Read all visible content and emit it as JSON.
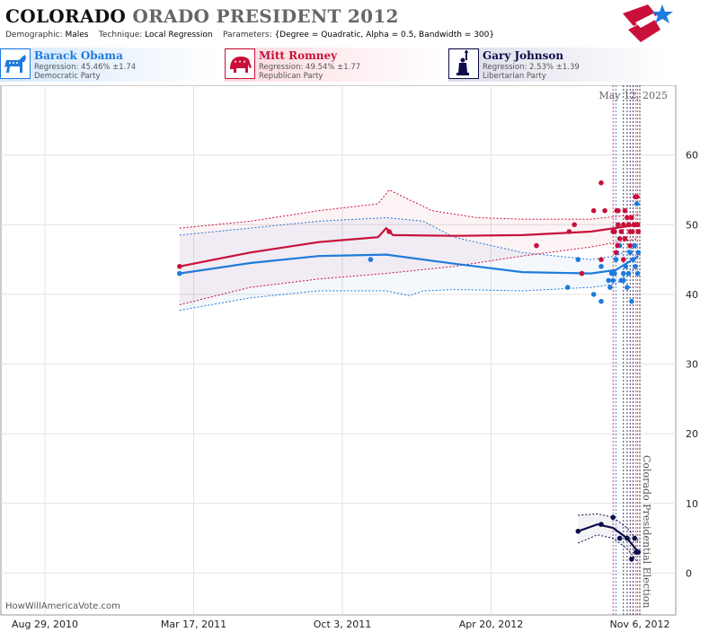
{
  "header": {
    "title_part1": "COLORADO",
    "title_part2": "ORADO PRESIDENT 2012",
    "demographic_label": "Demographic:",
    "demographic_value": "Males",
    "technique_label": "Technique:",
    "technique_value": "Local Regression",
    "parameters_label": "Parameters:",
    "parameters_value": "{Degree = Quadratic, Alpha = 0.5, Bandwidth = 300}"
  },
  "candidates": [
    {
      "name": "Barack Obama",
      "regression": "Regression: 45.46% ±1.74",
      "party": "Democratic Party",
      "color": "#1f7bdc",
      "icon": "donkey-icon"
    },
    {
      "name": "Mitt Romney",
      "regression": "Regression: 49.54% ±1.77",
      "party": "Republican Party",
      "color": "#c8103a",
      "icon": "elephant-icon"
    },
    {
      "name": "Gary Johnson",
      "regression": "Regression: 2.53% ±1.39",
      "party": "Libertarian Party",
      "color": "#0e0c4a",
      "icon": "statue-of-liberty-icon"
    }
  ],
  "chart_data": {
    "type": "scatter",
    "x_tick_labels": [
      "Aug 29, 2010",
      "Mar 17, 2011",
      "Oct 3, 2011",
      "Apr 20, 2012",
      "Nov 6, 2012"
    ],
    "y_ticks": [
      0,
      10,
      20,
      30,
      40,
      50,
      60
    ],
    "ylim": [
      -6,
      70
    ],
    "date_annotation": "May 12, 2025",
    "event_label": "Colorado Presidential Election",
    "watermark": "HowWillAmericaVote.com",
    "grid": true,
    "series": [
      {
        "name": "Barack Obama",
        "color": "#1f7bdc",
        "points": [
          [
            "Feb 26, 2011",
            43
          ],
          [
            "Nov 10, 2011",
            45
          ],
          [
            "Aug 1, 2012",
            41
          ],
          [
            "Aug 15, 2012",
            45
          ],
          [
            "Sep 5, 2012",
            40
          ],
          [
            "Sep 15, 2012",
            44
          ],
          [
            "Sep 15, 2012",
            39
          ],
          [
            "Sep 25, 2012",
            42
          ],
          [
            "Sep 27, 2012",
            41
          ],
          [
            "Sep 29, 2012",
            43
          ],
          [
            "Oct 1, 2012",
            42
          ],
          [
            "Oct 3, 2012",
            43
          ],
          [
            "Oct 5, 2012",
            45
          ],
          [
            "Oct 6, 2012",
            46
          ],
          [
            "Oct 10, 2012",
            47
          ],
          [
            "Oct 12, 2012",
            42
          ],
          [
            "Oct 15, 2012",
            43
          ],
          [
            "Oct 15, 2012",
            42
          ],
          [
            "Oct 18, 2012",
            44
          ],
          [
            "Oct 20, 2012",
            41
          ],
          [
            "Oct 22, 2012",
            43
          ],
          [
            "Oct 24, 2012",
            46
          ],
          [
            "Oct 26, 2012",
            39
          ],
          [
            "Oct 28, 2012",
            45
          ],
          [
            "Oct 30, 2012",
            47
          ],
          [
            "Oct 31, 2012",
            44
          ],
          [
            "Nov 2, 2012",
            53
          ],
          [
            "Nov 3, 2012",
            43
          ],
          [
            "Nov 4, 2012",
            46
          ]
        ],
        "trend": [
          [
            "Feb 26, 2011",
            43
          ],
          [
            "Jun 1, 2011",
            44.5
          ],
          [
            "Sep 1, 2011",
            45.5
          ],
          [
            "Dec 1, 2011",
            45.7
          ],
          [
            "Mar 1, 2012",
            44.4
          ],
          [
            "Jun 1, 2012",
            43.2
          ],
          [
            "Sep 1, 2012",
            43
          ],
          [
            "Oct 5, 2012",
            43.5
          ],
          [
            "Nov 4, 2012",
            45.5
          ]
        ],
        "upper": [
          [
            "Feb 26, 2011",
            48.5
          ],
          [
            "Jun 1, 2011",
            49.5
          ],
          [
            "Sep 1, 2011",
            50.5
          ],
          [
            "Dec 1, 2011",
            51
          ],
          [
            "Jan 20, 2012",
            50.5
          ],
          [
            "Mar 1, 2012",
            48.2
          ],
          [
            "Jun 1, 2012",
            46
          ],
          [
            "Sep 1, 2012",
            45
          ],
          [
            "Oct 5, 2012",
            45.5
          ],
          [
            "Nov 4, 2012",
            47
          ]
        ],
        "lower": [
          [
            "Feb 26, 2011",
            37.7
          ],
          [
            "Jun 1, 2011",
            39.5
          ],
          [
            "Sep 1, 2011",
            40.5
          ],
          [
            "Dec 1, 2011",
            40.5
          ],
          [
            "Jan 1, 2012",
            39.8
          ],
          [
            "Jan 20, 2012",
            40.5
          ],
          [
            "Mar 1, 2012",
            40.7
          ],
          [
            "Jun 1, 2012",
            40.5
          ],
          [
            "Sep 1, 2012",
            41
          ],
          [
            "Oct 5, 2012",
            41.5
          ],
          [
            "Nov 4, 2012",
            44
          ]
        ]
      },
      {
        "name": "Mitt Romney",
        "color": "#c8103a",
        "points": [
          [
            "Feb 26, 2011",
            44
          ],
          [
            "Dec 5, 2011",
            49
          ],
          [
            "Jun 20, 2012",
            47
          ],
          [
            "Aug 3, 2012",
            49
          ],
          [
            "Aug 10, 2012",
            50
          ],
          [
            "Aug 20, 2012",
            43
          ],
          [
            "Sep 5, 2012",
            52
          ],
          [
            "Sep 15, 2012",
            56
          ],
          [
            "Sep 15, 2012",
            45
          ],
          [
            "Sep 20, 2012",
            52
          ],
          [
            "Oct 1, 2012",
            49
          ],
          [
            "Oct 3, 2012",
            49
          ],
          [
            "Oct 5, 2012",
            46
          ],
          [
            "Oct 6, 2012",
            52
          ],
          [
            "Oct 7, 2012",
            47
          ],
          [
            "Oct 8, 2012",
            52
          ],
          [
            "Oct 8, 2012",
            50
          ],
          [
            "Oct 10, 2012",
            48
          ],
          [
            "Oct 12, 2012",
            49
          ],
          [
            "Oct 15, 2012",
            45
          ],
          [
            "Oct 15, 2012",
            50
          ],
          [
            "Oct 17, 2012",
            52
          ],
          [
            "Oct 17, 2012",
            48
          ],
          [
            "Oct 20, 2012",
            51
          ],
          [
            "Oct 22, 2012",
            50
          ],
          [
            "Oct 24, 2012",
            49
          ],
          [
            "Oct 24, 2012",
            47
          ],
          [
            "Oct 26, 2012",
            51
          ],
          [
            "Oct 27, 2012",
            49
          ],
          [
            "Oct 29, 2012",
            50
          ],
          [
            "Oct 30, 2012",
            50
          ],
          [
            "Oct 31, 2012",
            54
          ],
          [
            "Nov 2, 2012",
            54
          ],
          [
            "Nov 3, 2012",
            50
          ],
          [
            "Nov 4, 2012",
            49
          ]
        ],
        "trend": [
          [
            "Feb 26, 2011",
            44
          ],
          [
            "Jun 1, 2011",
            46
          ],
          [
            "Sep 1, 2011",
            47.5
          ],
          [
            "Nov 20, 2011",
            48.2
          ],
          [
            "Dec 1, 2011",
            49.5
          ],
          [
            "Dec 10, 2011",
            48.5
          ],
          [
            "Mar 1, 2012",
            48.4
          ],
          [
            "Jun 1, 2012",
            48.5
          ],
          [
            "Sep 1, 2012",
            49
          ],
          [
            "Nov 4, 2012",
            50
          ]
        ],
        "upper": [
          [
            "Feb 26, 2011",
            49.5
          ],
          [
            "Jun 1, 2011",
            50.5
          ],
          [
            "Sep 1, 2011",
            52
          ],
          [
            "Nov 20, 2011",
            53
          ],
          [
            "Dec 5, 2011",
            55
          ],
          [
            "Dec 20, 2011",
            54.2
          ],
          [
            "Feb 1, 2012",
            52
          ],
          [
            "Apr 1, 2012",
            51
          ],
          [
            "Jun 1, 2012",
            50.8
          ],
          [
            "Sep 1, 2012",
            50.8
          ],
          [
            "Nov 4, 2012",
            51.5
          ]
        ],
        "lower": [
          [
            "Feb 26, 2011",
            38.5
          ],
          [
            "Jun 1, 2011",
            41
          ],
          [
            "Sep 1, 2011",
            42.2
          ],
          [
            "Dec 1, 2011",
            43
          ],
          [
            "Mar 1, 2012",
            44
          ],
          [
            "Jun 1, 2012",
            45.5
          ],
          [
            "Sep 1, 2012",
            46.8
          ],
          [
            "Nov 4, 2012",
            48
          ]
        ]
      },
      {
        "name": "Gary Johnson",
        "color": "#0e0c4a",
        "points": [
          [
            "Aug 15, 2012",
            6
          ],
          [
            "Sep 15, 2012",
            7
          ],
          [
            "Oct 1, 2012",
            8
          ],
          [
            "Oct 10, 2012",
            5
          ],
          [
            "Oct 20, 2012",
            5
          ],
          [
            "Oct 26, 2012",
            2
          ],
          [
            "Oct 30, 2012",
            5
          ],
          [
            "Nov 1, 2012",
            3
          ],
          [
            "Nov 4, 2012",
            3
          ]
        ],
        "trend": [
          [
            "Aug 15, 2012",
            6
          ],
          [
            "Sep 10, 2012",
            7
          ],
          [
            "Oct 1, 2012",
            6.5
          ],
          [
            "Oct 20, 2012",
            5
          ],
          [
            "Nov 4, 2012",
            3
          ]
        ],
        "upper": [
          [
            "Aug 15, 2012",
            8.3
          ],
          [
            "Sep 10, 2012",
            8.5
          ],
          [
            "Oct 1, 2012",
            8
          ],
          [
            "Oct 20, 2012",
            6.5
          ],
          [
            "Nov 4, 2012",
            4.6
          ]
        ],
        "lower": [
          [
            "Aug 15, 2012",
            4.3
          ],
          [
            "Sep 10, 2012",
            5.5
          ],
          [
            "Oct 1, 2012",
            5
          ],
          [
            "Oct 20, 2012",
            3.5
          ],
          [
            "Nov 4, 2012",
            1.5
          ]
        ]
      }
    ],
    "poll_date_lines": [
      {
        "date": "Oct 1, 2012",
        "color": "#c8103a"
      },
      {
        "date": "Oct 5, 2012",
        "color": "#1f7bdc"
      },
      {
        "date": "Oct 15, 2012",
        "color": "#0e0c4a"
      },
      {
        "date": "Oct 20, 2012",
        "color": "#0e0c4a"
      },
      {
        "date": "Oct 24, 2012",
        "color": "#0e0c4a"
      },
      {
        "date": "Oct 28, 2012",
        "color": "#0e0c4a"
      },
      {
        "date": "Nov 1, 2012",
        "color": "#c8103a"
      },
      {
        "date": "Nov 3, 2012",
        "color": "#1f7bdc"
      },
      {
        "date": "Nov 6, 2012",
        "color": "#0e0c4a"
      }
    ]
  }
}
